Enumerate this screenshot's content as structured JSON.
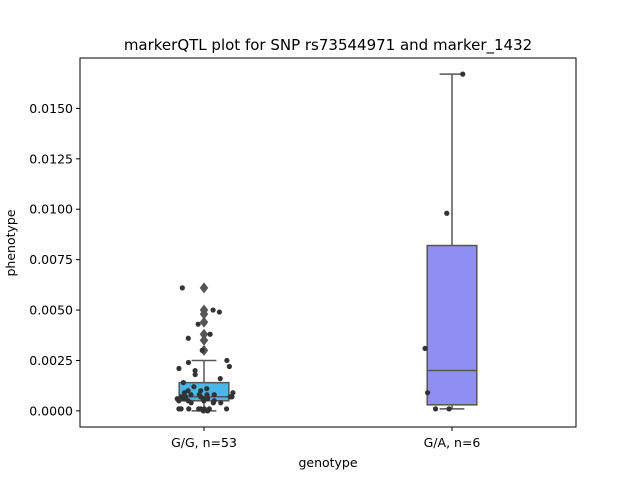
{
  "chart_data": {
    "type": "box",
    "title": "markerQTL plot for SNP rs73544971 and marker_1432",
    "xlabel": "genotype",
    "ylabel": "phenotype",
    "categories": [
      "G/G, n=53",
      "G/A, n=6"
    ],
    "ylim": [
      -0.0008,
      0.0175
    ],
    "yticks": [
      0.0,
      0.0025,
      0.005,
      0.0075,
      0.01,
      0.0125,
      0.015
    ],
    "ytick_labels": [
      "0.0000",
      "0.0025",
      "0.0050",
      "0.0075",
      "0.0100",
      "0.0125",
      "0.0150"
    ],
    "grid": false,
    "boxes": [
      {
        "category": "G/G, n=53",
        "color": "#4ab8e6",
        "whisker_low": 0.0,
        "q1": 0.0005,
        "median": 0.0007,
        "q3": 0.0014,
        "whisker_high": 0.0025,
        "outliers": [
          0.003,
          0.0035,
          0.0038,
          0.0044,
          0.0048,
          0.005,
          0.0061
        ]
      },
      {
        "category": "G/A, n=6",
        "color": "#8f8ef2",
        "whisker_low": 0.0001,
        "q1": 0.0003,
        "median": 0.002,
        "q3": 0.0082,
        "whisker_high": 0.0167,
        "outliers": []
      }
    ],
    "points": [
      {
        "category": "G/G, n=53",
        "values": [
          0.0,
          0.0,
          0.0001,
          0.0001,
          0.0001,
          0.0001,
          0.0001,
          0.0001,
          0.0001,
          0.0001,
          0.0004,
          0.0004,
          0.0004,
          0.0005,
          0.0005,
          0.0005,
          0.0005,
          0.0006,
          0.0006,
          0.0006,
          0.0006,
          0.0006,
          0.0007,
          0.0007,
          0.0007,
          0.0007,
          0.0007,
          0.0007,
          0.0008,
          0.0008,
          0.0008,
          0.0008,
          0.0009,
          0.0009,
          0.001,
          0.001,
          0.0011,
          0.0012,
          0.0014,
          0.0016,
          0.0018,
          0.002,
          0.0021,
          0.0022,
          0.0024,
          0.0025,
          0.003,
          0.0036,
          0.0038,
          0.0043,
          0.0049,
          0.005,
          0.0061
        ]
      },
      {
        "category": "G/A, n=6",
        "values": [
          0.0001,
          0.0001,
          0.0009,
          0.0031,
          0.0098,
          0.0167
        ]
      }
    ]
  }
}
